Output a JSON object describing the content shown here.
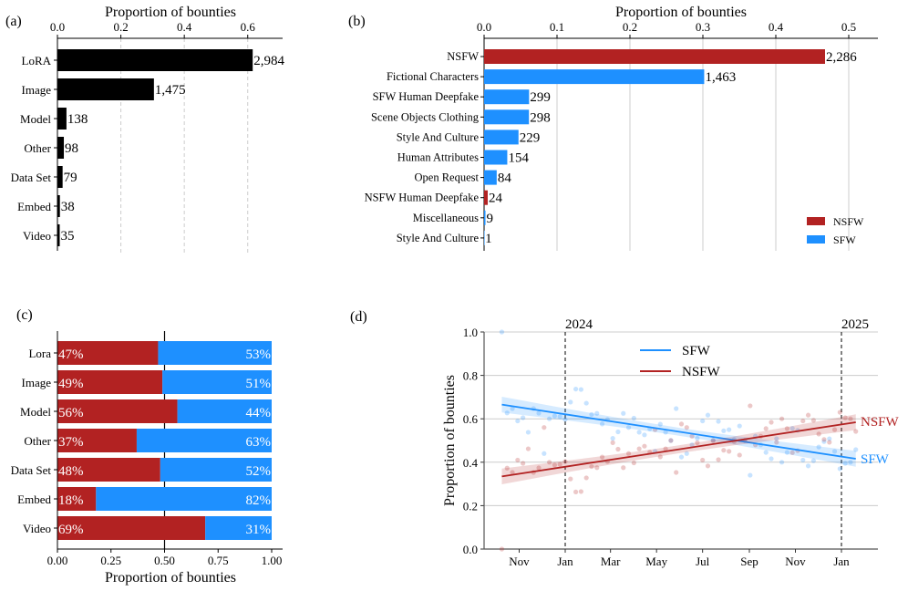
{
  "colors": {
    "nsfw": "#b22222",
    "sfw": "#1e90ff",
    "bar_a": "#000000"
  },
  "chart_data": [
    {
      "panel": "(a)",
      "type": "bar",
      "orientation": "horizontal",
      "xlabel": "Proportion of bounties",
      "xlim": [
        0,
        0.71
      ],
      "xticks": [
        "0.0",
        "0.2",
        "0.4",
        "0.6"
      ],
      "grid": "vertical dashed",
      "categories": [
        "LoRA",
        "Image",
        "Model",
        "Other",
        "Data Set",
        "Embed",
        "Video"
      ],
      "counts": [
        2984,
        1475,
        138,
        98,
        79,
        38,
        35
      ],
      "count_labels": [
        "2,984",
        "1,475",
        "138",
        "98",
        "79",
        "38",
        "35"
      ],
      "values": [
        0.6157,
        0.3043,
        0.0285,
        0.0202,
        0.0163,
        0.0078,
        0.0072
      ]
    },
    {
      "panel": "(b)",
      "type": "bar",
      "orientation": "horizontal",
      "xlabel": "Proportion of bounties",
      "xlim": [
        0,
        0.54
      ],
      "xticks": [
        "0.0",
        "0.1",
        "0.2",
        "0.3",
        "0.4",
        "0.5"
      ],
      "grid": "vertical",
      "legend": {
        "position": "bottom-right",
        "entries": [
          "NSFW",
          "SFW"
        ]
      },
      "categories": [
        "NSFW",
        "Fictional Characters",
        "SFW Human Deepfake",
        "Scene Objects Clothing",
        "Style And Culture",
        "Human Attributes",
        "Open Request",
        "NSFW Human Deepfake",
        "Miscellaneous",
        "Style And  Culture"
      ],
      "group": [
        "NSFW",
        "SFW",
        "SFW",
        "SFW",
        "SFW",
        "SFW",
        "SFW",
        "NSFW",
        "SFW",
        "SFW"
      ],
      "counts": [
        2286,
        1463,
        299,
        298,
        229,
        154,
        84,
        24,
        9,
        1
      ],
      "count_labels": [
        "2,286",
        "1,463",
        "299",
        "298",
        "229",
        "154",
        "84",
        "24",
        "9",
        "1"
      ],
      "values": [
        0.4675,
        0.3018,
        0.0617,
        0.0615,
        0.0472,
        0.0318,
        0.0173,
        0.005,
        0.0019,
        0.0002
      ]
    },
    {
      "panel": "(c)",
      "type": "bar",
      "orientation": "horizontal",
      "stacked": true,
      "xlabel": "Proportion of bounties",
      "xlim": [
        0,
        1.05
      ],
      "xticks": [
        "0.00",
        "0.25",
        "0.50",
        "0.75",
        "1.00"
      ],
      "reference_line": 0.5,
      "categories": [
        "Lora",
        "Image",
        "Model",
        "Other",
        "Data Set",
        "Embed",
        "Video"
      ],
      "series": [
        {
          "group": "NSFW",
          "values": [
            0.47,
            0.49,
            0.56,
            0.37,
            0.48,
            0.18,
            0.69
          ],
          "labels": [
            "47%",
            "49%",
            "56%",
            "37%",
            "48%",
            "18%",
            "69%"
          ]
        },
        {
          "group": "SFW",
          "values": [
            0.53,
            0.51,
            0.44,
            0.63,
            0.52,
            0.82,
            0.31
          ],
          "labels": [
            "53%",
            "51%",
            "44%",
            "63%",
            "52%",
            "82%",
            "31%"
          ]
        }
      ]
    },
    {
      "panel": "(d)",
      "type": "scatter",
      "trendline": "linear with confidence band",
      "ylabel": "Proportion of bounties",
      "ylim": [
        0.0,
        1.0
      ],
      "yticks": [
        "0.0",
        "0.2",
        "0.4",
        "0.6",
        "0.8",
        "1.0"
      ],
      "grid": "horizontal",
      "xlim": [
        "2023-10-01",
        "2025-02-15"
      ],
      "xticks": [
        {
          "date": "2023-11-01",
          "label": "Nov"
        },
        {
          "date": "2024-01-01",
          "label": "Jan"
        },
        {
          "date": "2024-03-01",
          "label": "Mar"
        },
        {
          "date": "2024-05-01",
          "label": "May"
        },
        {
          "date": "2024-07-01",
          "label": "Jul"
        },
        {
          "date": "2024-09-01",
          "label": "Sep"
        },
        {
          "date": "2024-11-01",
          "label": "Nov"
        },
        {
          "date": "2025-01-01",
          "label": "Jan"
        }
      ],
      "year_markers": [
        {
          "date": "2024-01-01",
          "label": "2024"
        },
        {
          "date": "2025-01-01",
          "label": "2025"
        }
      ],
      "legend": {
        "position": "top-center",
        "entries": [
          "SFW",
          "NSFW"
        ]
      },
      "end_labels": [
        "NSFW",
        "SFW"
      ],
      "x": [
        "2023-10-09",
        "2023-10-16",
        "2023-10-23",
        "2023-10-30",
        "2023-11-06",
        "2023-11-13",
        "2023-11-20",
        "2023-11-27",
        "2023-12-04",
        "2023-12-11",
        "2023-12-18",
        "2023-12-25",
        "2024-01-01",
        "2024-01-08",
        "2024-01-15",
        "2024-01-22",
        "2024-01-29",
        "2024-02-05",
        "2024-02-12",
        "2024-02-19",
        "2024-02-26",
        "2024-03-04",
        "2024-03-11",
        "2024-03-18",
        "2024-03-25",
        "2024-04-01",
        "2024-04-08",
        "2024-04-15",
        "2024-04-22",
        "2024-04-29",
        "2024-05-06",
        "2024-05-13",
        "2024-05-20",
        "2024-05-27",
        "2024-06-03",
        "2024-06-10",
        "2024-06-17",
        "2024-06-24",
        "2024-07-01",
        "2024-07-08",
        "2024-07-15",
        "2024-07-22",
        "2024-07-29",
        "2024-08-05",
        "2024-08-12",
        "2024-08-19",
        "2024-08-26",
        "2024-09-02",
        "2024-09-09",
        "2024-09-16",
        "2024-09-23",
        "2024-09-30",
        "2024-10-07",
        "2024-10-14",
        "2024-10-21",
        "2024-10-28",
        "2024-11-04",
        "2024-11-11",
        "2024-11-18",
        "2024-11-25",
        "2024-12-02",
        "2024-12-09",
        "2024-12-16",
        "2024-12-23",
        "2024-12-30",
        "2025-01-06",
        "2025-01-13",
        "2025-01-20"
      ],
      "series": [
        {
          "name": "SFW",
          "values": [
            1.0,
            0.627,
            0.647,
            0.59,
            0.605,
            0.538,
            0.647,
            0.626,
            0.44,
            0.6,
            0.613,
            0.61,
            0.597,
            0.677,
            0.737,
            0.735,
            0.672,
            0.62,
            0.625,
            0.576,
            0.597,
            0.51,
            0.54,
            0.625,
            0.56,
            0.603,
            0.538,
            0.526,
            0.554,
            0.45,
            0.575,
            0.538,
            0.5,
            0.647,
            0.424,
            0.44,
            0.48,
            0.51,
            0.59,
            0.617,
            0.5,
            0.588,
            0.545,
            0.55,
            0.505,
            0.567,
            0.5,
            0.34,
            0.52,
            0.48,
            0.445,
            0.416,
            0.508,
            0.4,
            0.445,
            0.556,
            0.547,
            0.41,
            0.383,
            0.407,
            0.47,
            0.495,
            0.508,
            0.45,
            0.37,
            0.395,
            0.4,
            0.458
          ]
        },
        {
          "name": "NSFW",
          "values": [
            0.0,
            0.373,
            0.353,
            0.41,
            0.395,
            0.462,
            0.353,
            0.374,
            0.56,
            0.4,
            0.387,
            0.39,
            0.403,
            0.323,
            0.263,
            0.265,
            0.328,
            0.38,
            0.375,
            0.424,
            0.403,
            0.49,
            0.46,
            0.375,
            0.44,
            0.397,
            0.462,
            0.474,
            0.446,
            0.55,
            0.425,
            0.462,
            0.5,
            0.353,
            0.576,
            0.56,
            0.52,
            0.49,
            0.41,
            0.383,
            0.5,
            0.412,
            0.455,
            0.45,
            0.495,
            0.433,
            0.5,
            0.66,
            0.48,
            0.52,
            0.555,
            0.584,
            0.492,
            0.6,
            0.555,
            0.444,
            0.453,
            0.59,
            0.617,
            0.593,
            0.53,
            0.505,
            0.492,
            0.55,
            0.63,
            0.605,
            0.6,
            0.542
          ]
        }
      ]
    }
  ]
}
